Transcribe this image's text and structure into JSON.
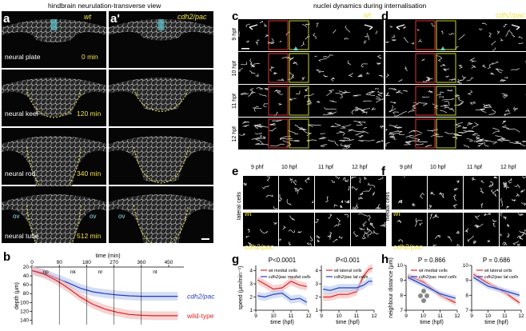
{
  "headers": {
    "left": "hindbrain neurulation-transverse view",
    "right": "nuclei dynamics during internalisation"
  },
  "panel_letters": {
    "a": "a",
    "a_prime": "a'",
    "b": "b",
    "c": "c",
    "d": "d",
    "e": "e",
    "f": "f",
    "g": "g",
    "h": "h"
  },
  "panel_a": {
    "genotype": "wt",
    "stages": [
      "neural plate",
      "neural keel",
      "neural rod",
      "neural tube"
    ],
    "times": [
      "0 min",
      "120 min",
      "340 min",
      "512 min"
    ],
    "ov": "ov"
  },
  "panel_a_prime": {
    "genotype": "cdh2/pac",
    "ov": "ov"
  },
  "panel_c": {
    "genotype": "wt",
    "hpf": [
      "9 hpf",
      "10 hpf",
      "11 hpf",
      "12 hpf"
    ]
  },
  "panel_d": {
    "genotype": "cdh2/pac"
  },
  "panel_e": {
    "side_label": "lateral cells",
    "times": [
      "9 phf",
      "10 hpf",
      "11 hpf",
      "12 hpf"
    ],
    "wt": "wt",
    "mut": "cdh2/pac"
  },
  "panel_f": {
    "side_label": "medial cells",
    "times": [
      "9 phf",
      "10 hpf",
      "11 hpf",
      "12 hpf"
    ],
    "wt": "wt",
    "mut": "cdh2/pac"
  },
  "colors": {
    "wt": "#d62728",
    "mut": "#1f3fbf",
    "wt_band": "#f4b6b6",
    "mut_band": "#b9c6f0",
    "yellow": "#f2e24a",
    "cyan": "#8fe3ec"
  },
  "chart_data": [
    {
      "id": "b",
      "type": "line",
      "xlabel": "time (min)",
      "ylabel": "depth (μm)",
      "xticks": [
        0,
        90,
        180,
        270,
        360,
        450
      ],
      "yticks": [
        20,
        40,
        60,
        80,
        100,
        120,
        140
      ],
      "xlim": [
        0,
        500
      ],
      "ylim": [
        20,
        150
      ],
      "stage_marks": [
        "np",
        "nk",
        "nr",
        "nt"
      ],
      "series": [
        {
          "name": "cdh2/pac",
          "x": [
            0,
            40,
            80,
            120,
            160,
            200,
            240,
            280,
            320,
            360,
            400,
            440,
            480
          ],
          "values": [
            28,
            34,
            45,
            56,
            68,
            76,
            80,
            83,
            85,
            86,
            86,
            86,
            86
          ]
        },
        {
          "name": "wild-type",
          "x": [
            0,
            40,
            80,
            120,
            160,
            200,
            240,
            280,
            320,
            360,
            400,
            440,
            480
          ],
          "values": [
            28,
            36,
            50,
            68,
            88,
            104,
            115,
            122,
            127,
            129,
            130,
            130,
            130
          ]
        }
      ]
    },
    {
      "id": "g1",
      "type": "line",
      "title": "P<0.0001",
      "xlabel": "time (hpf)",
      "ylabel": "speed (μm/min⁻¹)",
      "xticks": [
        9,
        10,
        11,
        12
      ],
      "yticks": [
        1,
        2,
        3,
        4
      ],
      "xlim": [
        9,
        12
      ],
      "ylim": [
        1,
        4.4
      ],
      "series": [
        {
          "name": "wt medial cells",
          "x": [
            9.1,
            9.5,
            10,
            10.5,
            11,
            11.5,
            11.9
          ],
          "values": [
            3.3,
            3.0,
            2.6,
            2.7,
            3.2,
            2.9,
            2.8
          ]
        },
        {
          "name": "cdh2/pac medial cells",
          "x": [
            9.1,
            9.5,
            10,
            10.5,
            11,
            11.5,
            11.9
          ],
          "values": [
            2.1,
            2.0,
            2.2,
            2.3,
            1.8,
            1.9,
            1.6
          ]
        }
      ]
    },
    {
      "id": "g2",
      "type": "line",
      "title": "P<0.001",
      "xlabel": "time (hpf)",
      "xticks": [
        9,
        10,
        11,
        12
      ],
      "yticks": [
        1,
        2,
        3,
        4
      ],
      "xlim": [
        9,
        12
      ],
      "ylim": [
        1,
        4.4
      ],
      "series": [
        {
          "name": "wt lateral cells",
          "x": [
            9.1,
            9.5,
            10,
            10.5,
            11,
            11.4,
            11.7,
            11.9
          ],
          "values": [
            2.0,
            2.0,
            2.2,
            2.2,
            2.4,
            3.6,
            4.1,
            4.2
          ]
        },
        {
          "name": "cdh2/pac lat cells",
          "x": [
            9.1,
            9.5,
            10,
            10.5,
            11,
            11.4,
            11.7,
            11.9
          ],
          "values": [
            2.6,
            2.5,
            2.7,
            2.7,
            2.7,
            2.9,
            3.2,
            3.2
          ]
        }
      ]
    },
    {
      "id": "h1",
      "type": "line",
      "title": "P = 0.866",
      "xlabel": "time (hpf)",
      "ylabel": "neighbour distance (μm)",
      "xticks": [
        9,
        10,
        11,
        12
      ],
      "yticks": [
        7,
        8,
        9,
        10
      ],
      "xlim": [
        9,
        12
      ],
      "ylim": [
        7,
        10
      ],
      "series": [
        {
          "name": "wt medial cells",
          "x": [
            9.1,
            10,
            11,
            11.9
          ],
          "values": [
            9.3,
            8.9,
            8.0,
            7.5
          ]
        },
        {
          "name": "cdh2/pac med cells",
          "x": [
            9.1,
            10,
            11,
            11.9
          ],
          "values": [
            9.2,
            8.7,
            8.1,
            7.8
          ]
        }
      ]
    },
    {
      "id": "h2",
      "type": "line",
      "title": "P = 0.686",
      "xlabel": "time (hpf)",
      "xticks": [
        9,
        10,
        11,
        12
      ],
      "yticks": [
        7,
        8,
        9,
        10
      ],
      "xlim": [
        9,
        12
      ],
      "ylim": [
        7,
        10
      ],
      "series": [
        {
          "name": "wt lateral cells",
          "x": [
            9.1,
            10,
            11,
            11.9
          ],
          "values": [
            9.4,
            8.8,
            8.2,
            7.5
          ]
        },
        {
          "name": "cdh2/pac lat cells",
          "x": [
            9.1,
            10,
            11,
            11.9
          ],
          "values": [
            9.2,
            8.6,
            8.3,
            8.0
          ]
        }
      ]
    }
  ]
}
